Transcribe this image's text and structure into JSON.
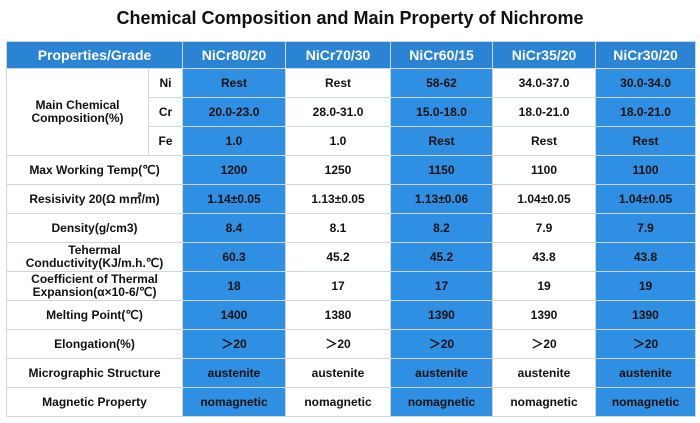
{
  "title": "Chemical Composition and Main Property of Nichrome",
  "header": "Properties/Grade",
  "grades": [
    "NiCr80/20",
    "NiCr70/30",
    "NiCr60/15",
    "NiCr35/20",
    "NiCr30/20"
  ],
  "composition_label": "Main Chemical Composition(%)",
  "composition": [
    {
      "el": "Ni",
      "values": [
        "Rest",
        "Rest",
        "58-62",
        "34.0-37.0",
        "30.0-34.0"
      ]
    },
    {
      "el": "Cr",
      "values": [
        "20.0-23.0",
        "28.0-31.0",
        "15.0-18.0",
        "18.0-21.0",
        "18.0-21.0"
      ]
    },
    {
      "el": "Fe",
      "values": [
        "1.0",
        "1.0",
        "Rest",
        "Rest",
        "Rest"
      ]
    }
  ],
  "rows": [
    {
      "label": "Max Working Temp(℃)",
      "values": [
        "1200",
        "1250",
        "1150",
        "1100",
        "1100"
      ]
    },
    {
      "label": "Resisivity 20(Ω m㎡/m)",
      "values": [
        "1.14±0.05",
        "1.13±0.05",
        "1.13±0.06",
        "1.04±0.05",
        "1.04±0.05"
      ]
    },
    {
      "label": "Density(g/cm3)",
      "values": [
        "8.4",
        "8.1",
        "8.2",
        "7.9",
        "7.9"
      ]
    },
    {
      "label": "Tehermal Conductivity(KJ/m.h.℃)",
      "values": [
        "60.3",
        "45.2",
        "45.2",
        "43.8",
        "43.8"
      ]
    },
    {
      "label": "Coefficient of Thermal Expansion(α×10-6/℃)",
      "values": [
        "18",
        "17",
        "17",
        "19",
        "19"
      ]
    },
    {
      "label": "Melting Point(℃)",
      "values": [
        "1400",
        "1380",
        "1390",
        "1390",
        "1390"
      ]
    },
    {
      "label": "Elongation(%)",
      "values": [
        "＞20",
        "＞20",
        "＞20",
        "＞20",
        "＞20"
      ]
    },
    {
      "label": "Micrographic Structure",
      "values": [
        "austenite",
        "austenite",
        "austenite",
        "austenite",
        "austenite"
      ]
    },
    {
      "label": "Magnetic Property",
      "values": [
        "nomagnetic",
        "nomagnetic",
        "nomagnetic",
        "nomagnetic",
        "nomagnetic"
      ]
    }
  ]
}
